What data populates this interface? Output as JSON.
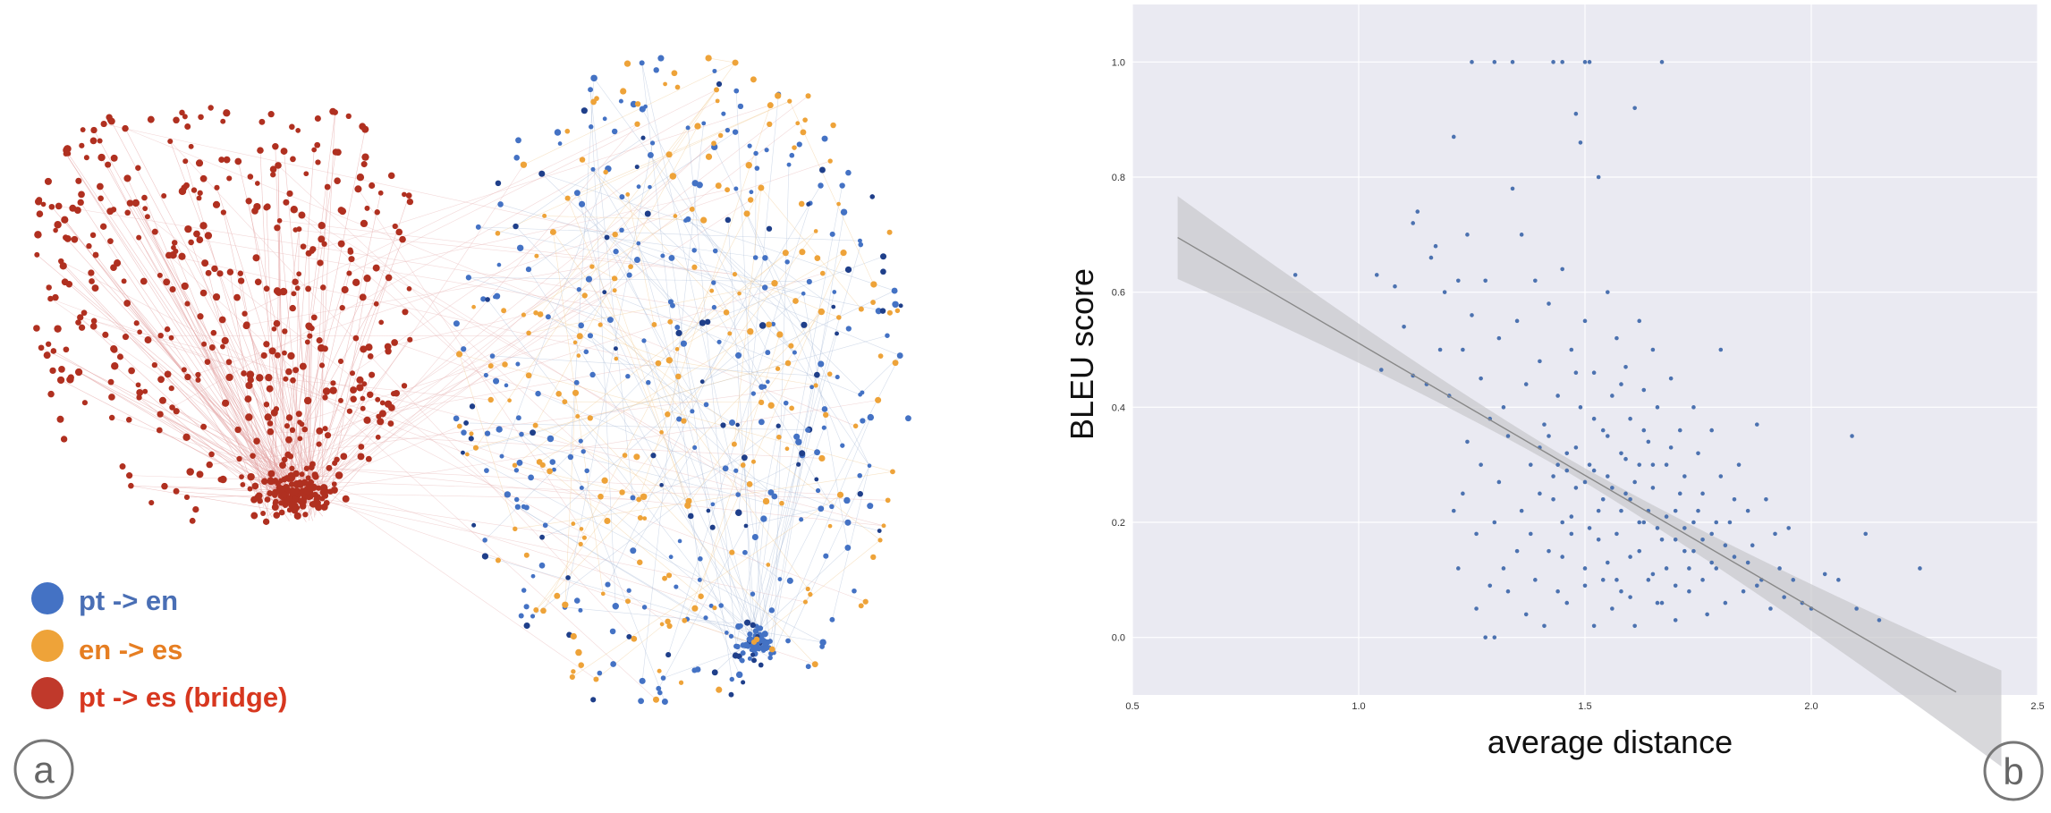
{
  "panel_a": {
    "letter": "a",
    "legend": [
      {
        "label": "pt -> en",
        "color": "#4472c4",
        "text_color": "#4a6fb5"
      },
      {
        "label": "en -> es",
        "color": "#eea339",
        "text_color": "#e67e22"
      },
      {
        "label": "pt -> es (bridge)",
        "color": "#c0392b",
        "text_color": "#d7371f"
      }
    ]
  },
  "panel_b": {
    "letter": "b"
  },
  "chart_data": {
    "type": "scatter",
    "title": "",
    "xlabel": "average distance",
    "ylabel": "BLEU score",
    "xlim": [
      0.5,
      2.5
    ],
    "ylim": [
      -0.1,
      1.1
    ],
    "xticks": [
      "0.5",
      "1.0",
      "1.5",
      "2.0",
      "2.5"
    ],
    "yticks": [
      "0.0",
      "0.2",
      "0.4",
      "0.6",
      "0.8",
      "1.0"
    ],
    "grid": true,
    "background": "#eaeaf2",
    "point_color": "#4c72b0",
    "regression": {
      "x": [
        0.6,
        2.32
      ],
      "y": [
        0.695,
        -0.095
      ],
      "line_color": "#888888",
      "band_color": "#c8c8cc"
    },
    "series": [
      {
        "points": [
          [
            0.86,
            0.63
          ],
          [
            1.04,
            0.63
          ],
          [
            1.05,
            0.465
          ],
          [
            1.08,
            0.61
          ],
          [
            1.1,
            0.54
          ],
          [
            1.12,
            0.455
          ],
          [
            1.12,
            0.72
          ],
          [
            1.13,
            0.74
          ],
          [
            1.15,
            0.44
          ],
          [
            1.16,
            0.66
          ],
          [
            1.17,
            0.68
          ],
          [
            1.18,
            0.5
          ],
          [
            1.19,
            0.6
          ],
          [
            1.2,
            0.42
          ],
          [
            1.21,
            0.22
          ],
          [
            1.21,
            0.87
          ],
          [
            1.22,
            0.12
          ],
          [
            1.22,
            0.62
          ],
          [
            1.23,
            0.25
          ],
          [
            1.23,
            0.5
          ],
          [
            1.24,
            0.34
          ],
          [
            1.24,
            0.7
          ],
          [
            1.25,
            1.0
          ],
          [
            1.25,
            0.56
          ],
          [
            1.26,
            0.05
          ],
          [
            1.26,
            0.18
          ],
          [
            1.27,
            0.3
          ],
          [
            1.27,
            0.45
          ],
          [
            1.28,
            0.0
          ],
          [
            1.28,
            0.62
          ],
          [
            1.29,
            0.09
          ],
          [
            1.29,
            0.38
          ],
          [
            1.3,
            0.0
          ],
          [
            1.3,
            0.2
          ],
          [
            1.3,
            1.0
          ],
          [
            1.31,
            0.27
          ],
          [
            1.31,
            0.52
          ],
          [
            1.32,
            0.12
          ],
          [
            1.32,
            0.4
          ],
          [
            1.33,
            0.08
          ],
          [
            1.33,
            0.35
          ],
          [
            1.34,
            1.0
          ],
          [
            1.34,
            0.78
          ],
          [
            1.35,
            0.15
          ],
          [
            1.35,
            0.55
          ],
          [
            1.36,
            0.22
          ],
          [
            1.36,
            0.7
          ],
          [
            1.37,
            0.04
          ],
          [
            1.37,
            0.44
          ],
          [
            1.38,
            0.18
          ],
          [
            1.38,
            0.3
          ],
          [
            1.39,
            0.62
          ],
          [
            1.39,
            0.1
          ],
          [
            1.4,
            0.25
          ],
          [
            1.4,
            0.48
          ],
          [
            1.41,
            0.02
          ],
          [
            1.41,
            0.37
          ],
          [
            1.42,
            0.15
          ],
          [
            1.42,
            0.58
          ],
          [
            1.43,
            1.0
          ],
          [
            1.43,
            0.28
          ],
          [
            1.44,
            0.08
          ],
          [
            1.44,
            0.42
          ],
          [
            1.45,
            1.0
          ],
          [
            1.45,
            0.2
          ],
          [
            1.45,
            0.64
          ],
          [
            1.46,
            0.32
          ],
          [
            1.46,
            0.06
          ],
          [
            1.47,
            0.5
          ],
          [
            1.47,
            0.18
          ],
          [
            1.48,
            0.91
          ],
          [
            1.48,
            0.26
          ],
          [
            1.49,
            0.86
          ],
          [
            1.49,
            0.4
          ],
          [
            1.5,
            1.0
          ],
          [
            1.5,
            0.12
          ],
          [
            1.5,
            0.55
          ],
          [
            1.51,
            1.0
          ],
          [
            1.51,
            0.3
          ],
          [
            1.52,
            0.02
          ],
          [
            1.52,
            0.46
          ],
          [
            1.53,
            0.22
          ],
          [
            1.53,
            0.8
          ],
          [
            1.54,
            0.36
          ],
          [
            1.54,
            0.1
          ],
          [
            1.55,
            0.6
          ],
          [
            1.55,
            0.28
          ],
          [
            1.56,
            0.05
          ],
          [
            1.56,
            0.42
          ],
          [
            1.57,
            0.18
          ],
          [
            1.57,
            0.52
          ],
          [
            1.58,
            0.32
          ],
          [
            1.58,
            0.08
          ],
          [
            1.59,
            0.25
          ],
          [
            1.59,
            0.47
          ],
          [
            1.6,
            0.14
          ],
          [
            1.6,
            0.38
          ],
          [
            1.61,
            0.92
          ],
          [
            1.61,
            0.02
          ],
          [
            1.62,
            0.3
          ],
          [
            1.62,
            0.55
          ],
          [
            1.63,
            0.2
          ],
          [
            1.63,
            0.43
          ],
          [
            1.64,
            0.1
          ],
          [
            1.64,
            0.34
          ],
          [
            1.65,
            0.26
          ],
          [
            1.65,
            0.5
          ],
          [
            1.66,
            0.06
          ],
          [
            1.66,
            0.4
          ],
          [
            1.67,
            0.17
          ],
          [
            1.67,
            1.0
          ],
          [
            1.68,
            0.3
          ],
          [
            1.68,
            0.12
          ],
          [
            1.69,
            0.45
          ],
          [
            1.7,
            0.22
          ],
          [
            1.7,
            0.03
          ],
          [
            1.71,
            0.36
          ],
          [
            1.72,
            0.15
          ],
          [
            1.72,
            0.28
          ],
          [
            1.73,
            0.08
          ],
          [
            1.74,
            0.4
          ],
          [
            1.74,
            0.2
          ],
          [
            1.75,
            0.32
          ],
          [
            1.76,
            0.1
          ],
          [
            1.76,
            0.25
          ],
          [
            1.77,
            0.04
          ],
          [
            1.78,
            0.18
          ],
          [
            1.78,
            0.36
          ],
          [
            1.79,
            0.12
          ],
          [
            1.8,
            0.28
          ],
          [
            1.8,
            0.5
          ],
          [
            1.81,
            0.06
          ],
          [
            1.82,
            0.2
          ],
          [
            1.83,
            0.14
          ],
          [
            1.84,
            0.3
          ],
          [
            1.85,
            0.08
          ],
          [
            1.86,
            0.22
          ],
          [
            1.87,
            0.16
          ],
          [
            1.88,
            0.37
          ],
          [
            1.89,
            0.1
          ],
          [
            1.9,
            0.24
          ],
          [
            1.91,
            0.05
          ],
          [
            1.92,
            0.18
          ],
          [
            1.93,
            0.12
          ],
          [
            1.94,
            0.07
          ],
          [
            1.95,
            0.19
          ],
          [
            1.96,
            0.1
          ],
          [
            1.98,
            0.06
          ],
          [
            2.0,
            0.05
          ],
          [
            2.03,
            0.11
          ],
          [
            2.06,
            0.1
          ],
          [
            2.09,
            0.35
          ],
          [
            2.1,
            0.05
          ],
          [
            2.12,
            0.18
          ],
          [
            2.15,
            0.03
          ],
          [
            2.24,
            0.12
          ],
          [
            1.4,
            0.33
          ],
          [
            1.42,
            0.35
          ],
          [
            1.44,
            0.3
          ],
          [
            1.46,
            0.29
          ],
          [
            1.48,
            0.33
          ],
          [
            1.5,
            0.27
          ],
          [
            1.52,
            0.29
          ],
          [
            1.54,
            0.24
          ],
          [
            1.56,
            0.26
          ],
          [
            1.58,
            0.22
          ],
          [
            1.6,
            0.24
          ],
          [
            1.62,
            0.2
          ],
          [
            1.64,
            0.22
          ],
          [
            1.66,
            0.19
          ],
          [
            1.68,
            0.21
          ],
          [
            1.7,
            0.17
          ],
          [
            1.72,
            0.19
          ],
          [
            1.74,
            0.15
          ],
          [
            1.76,
            0.17
          ],
          [
            1.78,
            0.13
          ],
          [
            1.5,
            0.09
          ],
          [
            1.55,
            0.13
          ],
          [
            1.6,
            0.07
          ],
          [
            1.65,
            0.11
          ],
          [
            1.7,
            0.09
          ],
          [
            1.45,
            0.14
          ],
          [
            1.53,
            0.17
          ],
          [
            1.57,
            0.1
          ],
          [
            1.62,
            0.15
          ],
          [
            1.67,
            0.06
          ],
          [
            1.73,
            0.12
          ],
          [
            1.58,
            0.44
          ],
          [
            1.52,
            0.38
          ],
          [
            1.48,
            0.46
          ],
          [
            1.63,
            0.36
          ],
          [
            1.69,
            0.33
          ],
          [
            1.43,
            0.24
          ],
          [
            1.47,
            0.21
          ],
          [
            1.51,
            0.19
          ],
          [
            1.55,
            0.35
          ],
          [
            1.59,
            0.31
          ],
          [
            1.61,
            0.27
          ],
          [
            1.65,
            0.3
          ],
          [
            1.71,
            0.25
          ],
          [
            1.75,
            0.22
          ],
          [
            1.79,
            0.2
          ],
          [
            1.83,
            0.24
          ],
          [
            1.81,
            0.16
          ],
          [
            1.86,
            0.13
          ],
          [
            1.88,
            0.09
          ]
        ]
      }
    ]
  }
}
